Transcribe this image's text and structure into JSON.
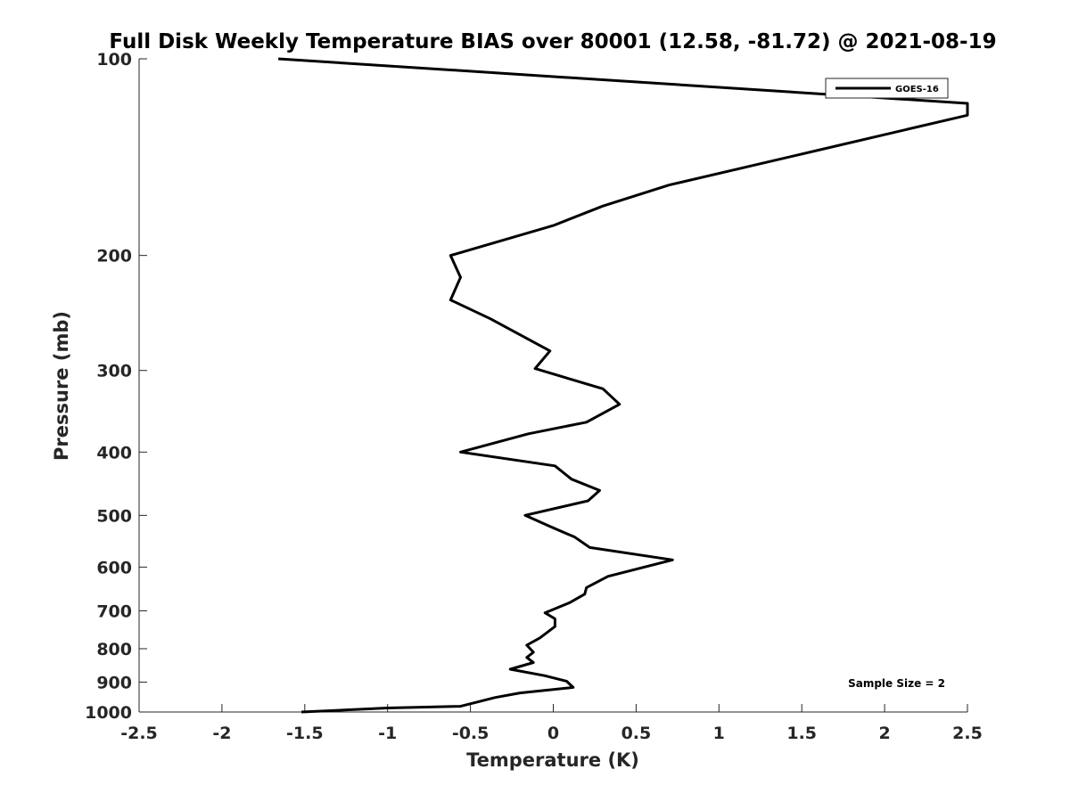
{
  "chart_data": {
    "type": "line",
    "title": "Full Disk Weekly Temperature BIAS over 80001 (12.58, -81.72) @ 2021-08-19",
    "xlabel": "Temperature (K)",
    "ylabel": "Pressure (mb)",
    "xlim": [
      -2.5,
      2.5
    ],
    "ylim": [
      100,
      1000
    ],
    "y_scale": "log",
    "y_reversed": true,
    "grid": false,
    "x_ticks": [
      "-2.5",
      "-2",
      "-1.5",
      "-1",
      "-0.5",
      "0",
      "0.5",
      "1",
      "1.5",
      "2",
      "2.5"
    ],
    "y_ticks": [
      "100",
      "200",
      "300",
      "400",
      "500",
      "600",
      "700",
      "800",
      "900",
      "1000"
    ],
    "legend_position": "top-right",
    "series": [
      {
        "name": "GOES-16",
        "color": "#000000",
        "points": [
          {
            "x": -1.66,
            "y": 100
          },
          {
            "x": 2.5,
            "y": 117
          },
          {
            "x": 2.5,
            "y": 122
          },
          {
            "x": 1.6,
            "y": 138
          },
          {
            "x": 0.7,
            "y": 156
          },
          {
            "x": 0.3,
            "y": 168
          },
          {
            "x": 0.0,
            "y": 180
          },
          {
            "x": -0.62,
            "y": 200
          },
          {
            "x": -0.56,
            "y": 216
          },
          {
            "x": -0.62,
            "y": 234
          },
          {
            "x": -0.38,
            "y": 250
          },
          {
            "x": -0.02,
            "y": 280
          },
          {
            "x": -0.11,
            "y": 298
          },
          {
            "x": 0.3,
            "y": 320
          },
          {
            "x": 0.4,
            "y": 338
          },
          {
            "x": 0.2,
            "y": 360
          },
          {
            "x": -0.15,
            "y": 375
          },
          {
            "x": -0.56,
            "y": 400
          },
          {
            "x": 0.01,
            "y": 420
          },
          {
            "x": 0.11,
            "y": 440
          },
          {
            "x": 0.28,
            "y": 458
          },
          {
            "x": 0.21,
            "y": 475
          },
          {
            "x": -0.17,
            "y": 500
          },
          {
            "x": -0.02,
            "y": 520
          },
          {
            "x": 0.13,
            "y": 540
          },
          {
            "x": 0.22,
            "y": 560
          },
          {
            "x": 0.72,
            "y": 585
          },
          {
            "x": 0.33,
            "y": 620
          },
          {
            "x": 0.2,
            "y": 645
          },
          {
            "x": 0.19,
            "y": 660
          },
          {
            "x": 0.1,
            "y": 680
          },
          {
            "x": -0.05,
            "y": 705
          },
          {
            "x": 0.01,
            "y": 720
          },
          {
            "x": 0.01,
            "y": 740
          },
          {
            "x": -0.08,
            "y": 770
          },
          {
            "x": -0.16,
            "y": 790
          },
          {
            "x": -0.12,
            "y": 810
          },
          {
            "x": -0.16,
            "y": 825
          },
          {
            "x": -0.12,
            "y": 840
          },
          {
            "x": -0.26,
            "y": 860
          },
          {
            "x": -0.05,
            "y": 880
          },
          {
            "x": 0.08,
            "y": 897
          },
          {
            "x": 0.12,
            "y": 917
          },
          {
            "x": -0.2,
            "y": 935
          },
          {
            "x": -0.35,
            "y": 950
          },
          {
            "x": -0.56,
            "y": 980
          },
          {
            "x": -1.0,
            "y": 986
          },
          {
            "x": -1.52,
            "y": 1000
          }
        ]
      }
    ],
    "annotations": [
      {
        "text": "Sample Size = 2",
        "position": "bottom-right"
      }
    ]
  }
}
